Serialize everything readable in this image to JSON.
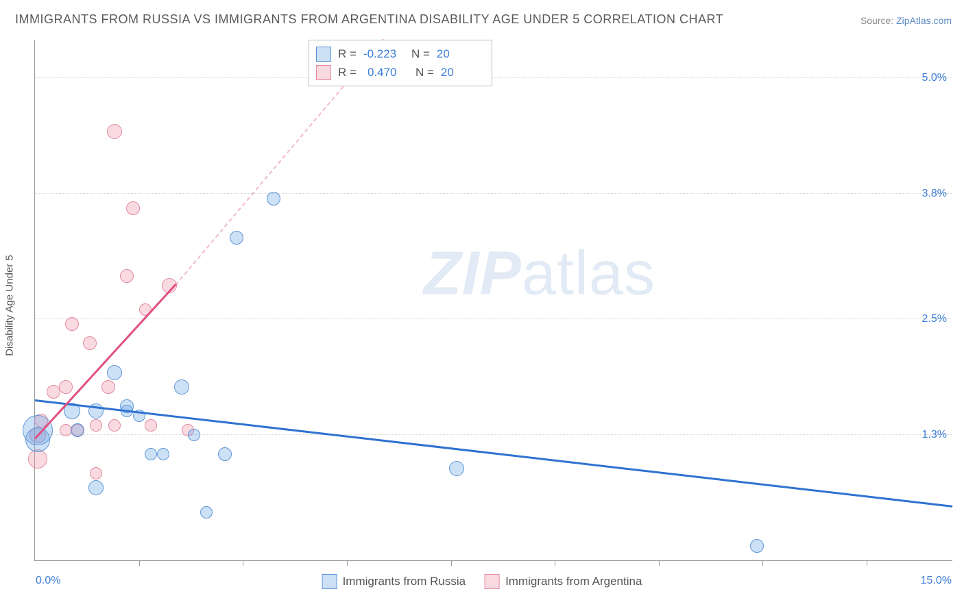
{
  "title": "IMMIGRANTS FROM RUSSIA VS IMMIGRANTS FROM ARGENTINA DISABILITY AGE UNDER 5 CORRELATION CHART",
  "source_prefix": "Source: ",
  "source_link": "ZipAtlas.com",
  "y_axis_title": "Disability Age Under 5",
  "watermark_a": "ZIP",
  "watermark_b": "atlas",
  "chart": {
    "type": "scatter-correlation",
    "xlim": [
      0,
      15
    ],
    "ylim": [
      0,
      5.4
    ],
    "x_ticks": [
      1.7,
      3.4,
      5.1,
      6.8,
      8.5,
      10.2,
      11.9,
      13.6
    ],
    "y_gridlines": [
      1.3,
      2.5,
      3.8,
      5.0
    ],
    "y_tick_labels": [
      "1.3%",
      "2.5%",
      "3.8%",
      "5.0%"
    ],
    "x_label_min": "0.0%",
    "x_label_max": "15.0%",
    "background_color": "#ffffff",
    "grid_color": "#dddddd",
    "text_color": "#555555",
    "accent_color": "#3b7dd8"
  },
  "series": {
    "russia": {
      "label": "Immigrants from Russia",
      "fill": "rgba(110,165,230,0.35)",
      "stroke": "#5e96d6",
      "trend_color": "#2f72d0",
      "R": "-0.223",
      "N": "20",
      "trend": {
        "x1": 0,
        "y1": 1.65,
        "x2": 15,
        "y2": 0.55
      },
      "points": [
        {
          "x": 0.05,
          "y": 1.25,
          "r": 18
        },
        {
          "x": 0.05,
          "y": 1.35,
          "r": 22
        },
        {
          "x": 0.6,
          "y": 1.55,
          "r": 12
        },
        {
          "x": 0.7,
          "y": 1.35,
          "r": 10
        },
        {
          "x": 1.0,
          "y": 1.55,
          "r": 11
        },
        {
          "x": 1.0,
          "y": 0.75,
          "r": 11
        },
        {
          "x": 1.3,
          "y": 1.95,
          "r": 11
        },
        {
          "x": 1.5,
          "y": 1.55,
          "r": 9
        },
        {
          "x": 1.5,
          "y": 1.6,
          "r": 10
        },
        {
          "x": 1.7,
          "y": 1.5,
          "r": 9
        },
        {
          "x": 1.9,
          "y": 1.1,
          "r": 9
        },
        {
          "x": 2.1,
          "y": 1.1,
          "r": 9
        },
        {
          "x": 2.4,
          "y": 1.8,
          "r": 11
        },
        {
          "x": 2.6,
          "y": 1.3,
          "r": 9
        },
        {
          "x": 2.8,
          "y": 0.5,
          "r": 9
        },
        {
          "x": 3.1,
          "y": 1.1,
          "r": 10
        },
        {
          "x": 3.3,
          "y": 3.35,
          "r": 10
        },
        {
          "x": 3.9,
          "y": 3.75,
          "r": 10
        },
        {
          "x": 6.9,
          "y": 0.95,
          "r": 11
        },
        {
          "x": 11.8,
          "y": 0.15,
          "r": 10
        }
      ]
    },
    "argentina": {
      "label": "Immigrants from Argentina",
      "fill": "rgba(240,150,170,0.35)",
      "stroke": "#e28aa0",
      "trend_color": "#e05080",
      "R": "0.470",
      "N": "20",
      "trend_solid": {
        "x1": 0,
        "y1": 1.25,
        "x2": 2.3,
        "y2": 2.85
      },
      "trend_dash": {
        "x1": 2.3,
        "y1": 2.85,
        "x2": 5.7,
        "y2": 5.4
      },
      "points": [
        {
          "x": 0.05,
          "y": 1.05,
          "r": 14
        },
        {
          "x": 0.05,
          "y": 1.3,
          "r": 12
        },
        {
          "x": 0.1,
          "y": 1.45,
          "r": 10
        },
        {
          "x": 0.3,
          "y": 1.75,
          "r": 10
        },
        {
          "x": 0.5,
          "y": 1.8,
          "r": 10
        },
        {
          "x": 0.5,
          "y": 1.35,
          "r": 9
        },
        {
          "x": 0.6,
          "y": 2.45,
          "r": 10
        },
        {
          "x": 0.7,
          "y": 1.35,
          "r": 9
        },
        {
          "x": 0.9,
          "y": 2.25,
          "r": 10
        },
        {
          "x": 1.0,
          "y": 1.4,
          "r": 9
        },
        {
          "x": 1.0,
          "y": 0.9,
          "r": 9
        },
        {
          "x": 1.2,
          "y": 1.8,
          "r": 10
        },
        {
          "x": 1.3,
          "y": 4.45,
          "r": 11
        },
        {
          "x": 1.3,
          "y": 1.4,
          "r": 9
        },
        {
          "x": 1.5,
          "y": 2.95,
          "r": 10
        },
        {
          "x": 1.6,
          "y": 3.65,
          "r": 10
        },
        {
          "x": 1.8,
          "y": 2.6,
          "r": 9
        },
        {
          "x": 1.9,
          "y": 1.4,
          "r": 9
        },
        {
          "x": 2.2,
          "y": 2.85,
          "r": 11
        },
        {
          "x": 2.5,
          "y": 1.35,
          "r": 9
        }
      ]
    }
  },
  "legend_top": {
    "r_label": "R =",
    "n_label": "N ="
  }
}
